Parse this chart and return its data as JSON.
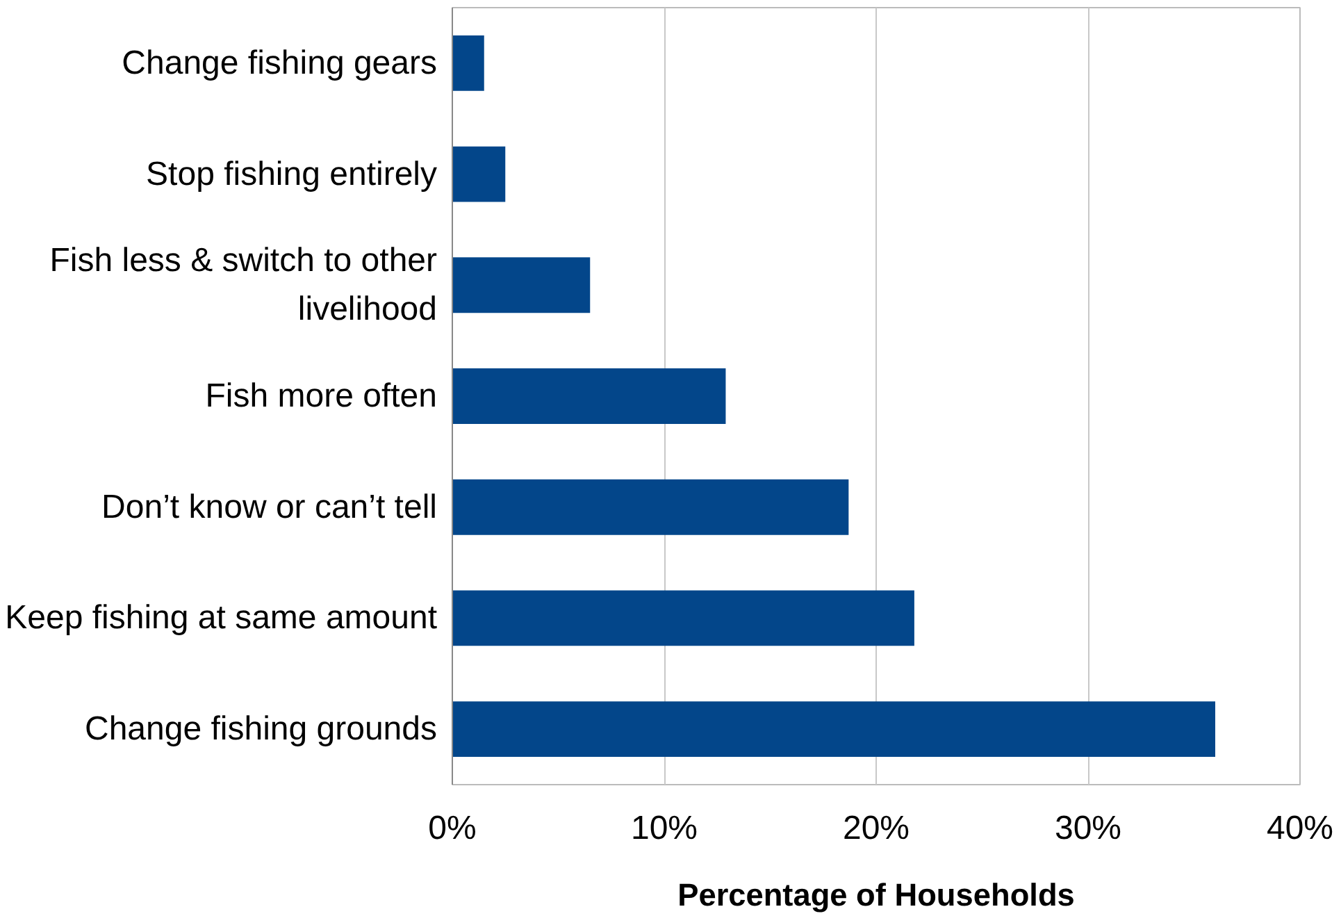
{
  "chart_data": {
    "type": "bar",
    "orientation": "horizontal",
    "xlabel": "Percentage of Households",
    "categories": [
      "Change fishing gears",
      "Stop fishing entirely",
      "Fish less & switch to other livelihood",
      "Fish more often",
      "Don’t know or can’t tell",
      "Keep fishing at same amount",
      "Change fishing grounds"
    ],
    "values": [
      1.5,
      2.5,
      6.5,
      12.9,
      18.7,
      21.8,
      36.0
    ],
    "color": "#03468a",
    "xlim": [
      0,
      40
    ],
    "xticks": [
      {
        "value": 0,
        "label": "0%"
      },
      {
        "value": 10,
        "label": "10%"
      },
      {
        "value": 20,
        "label": "20%"
      },
      {
        "value": 30,
        "label": "30%"
      },
      {
        "value": 40,
        "label": "40%"
      }
    ],
    "grid": "x"
  }
}
